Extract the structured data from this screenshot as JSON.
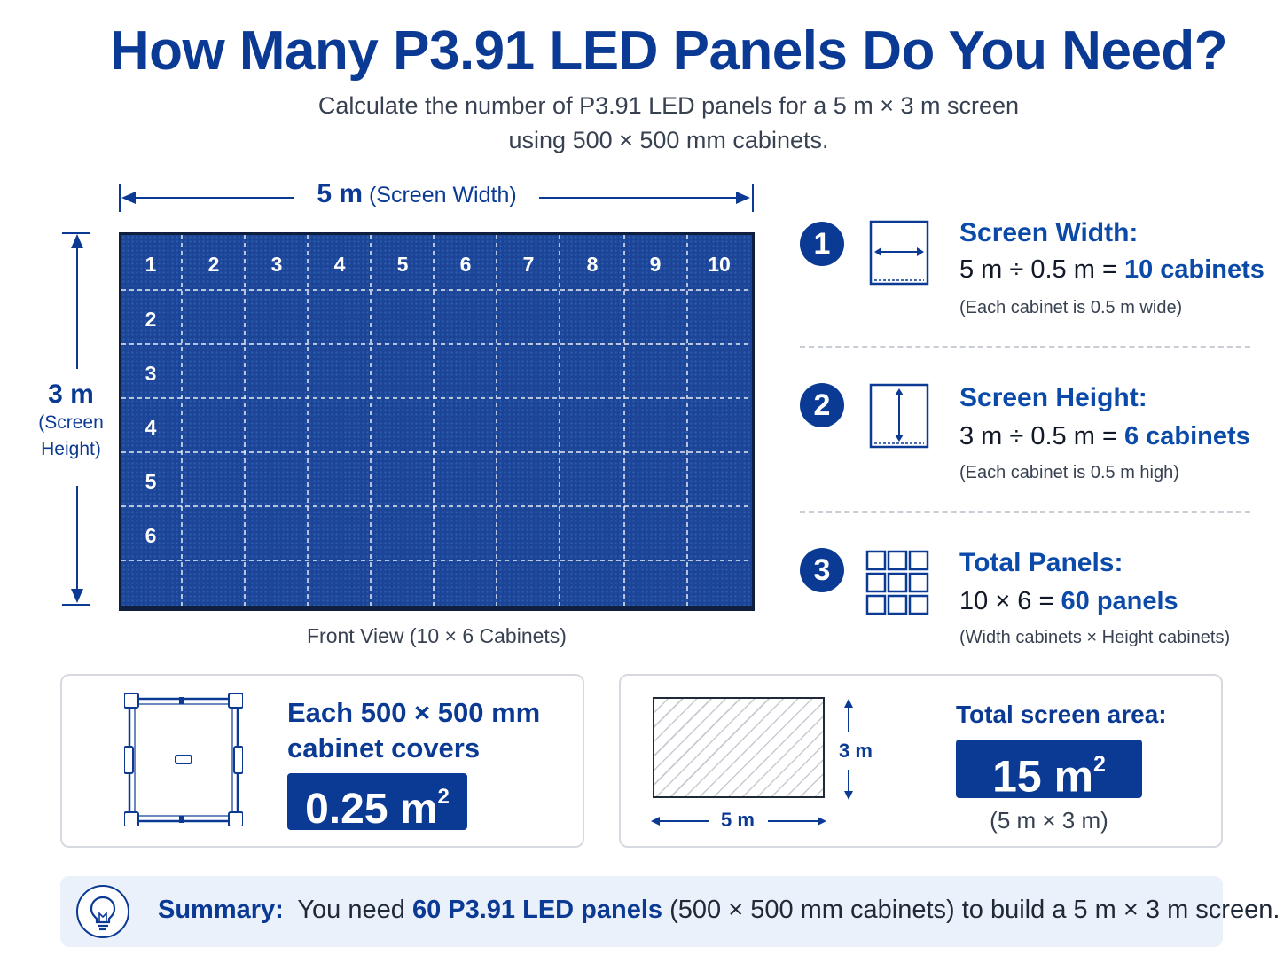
{
  "header": {
    "title": "How Many P3.91 LED Panels Do You Need?",
    "subtitle_line1": "Calculate the number of P3.91 LED panels for a 5 m × 3 m screen",
    "subtitle_line2": "using 500 × 500 mm cabinets."
  },
  "diagram": {
    "width_value": "5 m",
    "width_desc": "(Screen Width)",
    "height_value": "3 m",
    "height_desc_line1": "(Screen",
    "height_desc_line2": "Height)",
    "columns": [
      "1",
      "2",
      "3",
      "4",
      "5",
      "6",
      "7",
      "8",
      "9",
      "10"
    ],
    "rows": [
      "2",
      "3",
      "4",
      "5",
      "6"
    ],
    "caption": "Front View (10 × 6 Cabinets)",
    "panel_color": "#1c4597"
  },
  "steps": [
    {
      "number": "1",
      "icon": "width-arrows-icon",
      "title": "Screen Width:",
      "eq_prefix": "5 m ÷ 0.5 m =",
      "eq_result": "10 cabinets",
      "note": "(Each cabinet is 0.5 m wide)"
    },
    {
      "number": "2",
      "icon": "height-arrows-icon",
      "title": "Screen Height:",
      "eq_prefix": "3 m ÷ 0.5 m =",
      "eq_result": "6 cabinets",
      "note": "(Each cabinet is 0.5 m high)"
    },
    {
      "number": "3",
      "icon": "grid-icon",
      "title": "Total Panels:",
      "eq_prefix": "10 × 6 =",
      "eq_result": "60 panels",
      "note": "(Width cabinets × Height cabinets)"
    }
  ],
  "cabinet_card": {
    "line1": "Each 500 × 500 mm",
    "line2": "cabinet covers",
    "value": "0.25 m",
    "unit_exp": "2"
  },
  "area_card": {
    "title": "Total screen area:",
    "value": "15 m",
    "unit_exp": "2",
    "note": "(5 m × 3 m)",
    "width_label": "5 m",
    "height_label": "3 m"
  },
  "summary": {
    "label": "Summary:",
    "prefix": "You need",
    "highlight": "60 P3.91 LED panels",
    "suffix": "(500 × 500 mm cabinets) to build a 5 m × 3 m screen."
  },
  "colors": {
    "primary": "#0b3a94",
    "accent": "#0b4aa8"
  }
}
